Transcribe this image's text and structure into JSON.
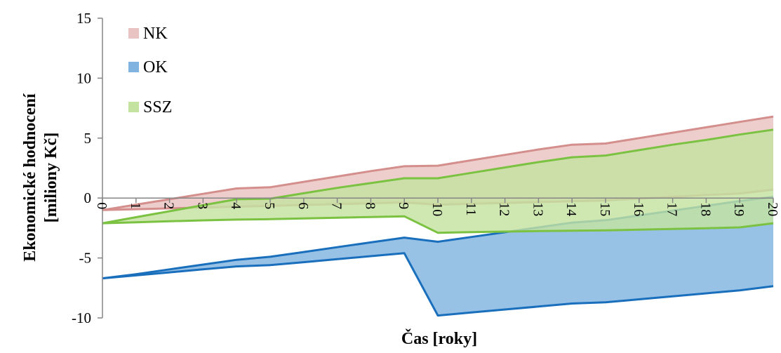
{
  "chart_data": {
    "type": "area",
    "title": "",
    "xlabel": "Čas [roky]",
    "ylabel_lines": [
      "Ekonomické hodnocení",
      "[miliony Kč]"
    ],
    "ylim": [
      -10,
      15
    ],
    "yticks": [
      "-10",
      "-5",
      "0",
      "5",
      "10",
      "15"
    ],
    "x": [
      "0",
      "1",
      "2",
      "3",
      "4",
      "5",
      "6",
      "7",
      "8",
      "9",
      "10",
      "11",
      "12",
      "13",
      "14",
      "15",
      "16",
      "17",
      "18",
      "19",
      "20"
    ],
    "legend_position": "top-left",
    "series": [
      {
        "name": "NK",
        "fill": "#e9c3c2",
        "line": "#d48f8c",
        "upper": [
          -1.0,
          -0.55,
          -0.1,
          0.35,
          0.8,
          0.9,
          1.35,
          1.8,
          2.25,
          2.65,
          2.7,
          3.15,
          3.6,
          4.05,
          4.45,
          4.55,
          5.0,
          5.45,
          5.9,
          6.35,
          6.8
        ],
        "lower": [
          -1.0,
          -0.93,
          -0.86,
          -0.79,
          -0.72,
          -0.65,
          -0.58,
          -0.51,
          -0.44,
          -0.37,
          -0.55,
          -0.48,
          -0.41,
          -0.34,
          -0.27,
          -0.2,
          -0.05,
          0.1,
          0.25,
          0.38,
          0.7
        ]
      },
      {
        "name": "OK",
        "fill": "#80b3df",
        "line": "#1a6fbd",
        "upper": [
          -6.7,
          -6.35,
          -5.95,
          -5.55,
          -5.15,
          -4.9,
          -4.5,
          -4.1,
          -3.7,
          -3.3,
          -3.65,
          -3.25,
          -2.85,
          -2.45,
          -2.05,
          -1.85,
          -1.45,
          -1.05,
          -0.65,
          -0.25,
          0.1
        ],
        "lower": [
          -6.7,
          -6.45,
          -6.2,
          -5.95,
          -5.7,
          -5.6,
          -5.35,
          -5.1,
          -4.85,
          -4.6,
          -9.8,
          -9.55,
          -9.3,
          -9.05,
          -8.8,
          -8.7,
          -8.45,
          -8.2,
          -7.95,
          -7.7,
          -7.35
        ]
      },
      {
        "name": "SSZ",
        "fill": "#c4e3a1",
        "line": "#7cc242",
        "upper": [
          -2.1,
          -1.6,
          -1.1,
          -0.6,
          -0.1,
          -0.05,
          0.4,
          0.85,
          1.25,
          1.65,
          1.65,
          2.1,
          2.55,
          3.0,
          3.4,
          3.55,
          4.0,
          4.45,
          4.85,
          5.3,
          5.7
        ],
        "lower": [
          -2.1,
          -2.02,
          -1.94,
          -1.86,
          -1.8,
          -1.76,
          -1.7,
          -1.64,
          -1.58,
          -1.52,
          -2.9,
          -2.84,
          -2.8,
          -2.76,
          -2.72,
          -2.7,
          -2.64,
          -2.58,
          -2.52,
          -2.45,
          -2.1
        ]
      }
    ]
  }
}
